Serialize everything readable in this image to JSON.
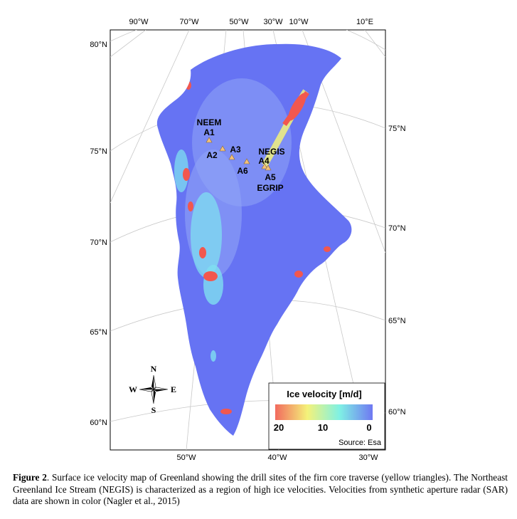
{
  "map": {
    "top_lon_ticks": [
      "90°W",
      "70°W",
      "50°W",
      "30°W",
      "10°W",
      "10°E"
    ],
    "bottom_lon_ticks": [
      "50°W",
      "40°W",
      "30°W"
    ],
    "left_lat_ticks": [
      "80°N",
      "75°N",
      "70°N",
      "65°N",
      "60°N"
    ],
    "right_lat_ticks": [
      "75°N",
      "70°N",
      "65°N",
      "60°N"
    ],
    "sites": {
      "neem": "NEEM",
      "a1": "A1",
      "a2": "A2",
      "a3": "A3",
      "a6": "A6",
      "negis": "NEGIS",
      "a4": "A4",
      "a5": "A5",
      "egrip": "EGRIP"
    },
    "compass": {
      "n": "N",
      "s": "S",
      "e": "E",
      "w": "W"
    },
    "legend": {
      "title": "Ice velocity [m/d]",
      "labels": [
        "20",
        "10",
        "0"
      ],
      "colors": [
        "#f26a5e",
        "#f4f27a",
        "#7ff1e4",
        "#6f78f2"
      ]
    },
    "source": "Source: Esa",
    "colors": {
      "ice_base": "#6673f3",
      "ice_light": "#8fa4f6",
      "ice_cyan": "#7fdff0",
      "fast_red": "#f2574e",
      "site_marker": "#f4c27a"
    }
  },
  "caption": {
    "label": "Figure 2",
    "text": ". Surface ice velocity map of Greenland showing the drill sites of the firn core traverse (yellow triangles). The Northeast Greenland Ice Stream (NEGIS) is characterized as a region of high ice velocities. Velocities from synthetic aperture radar (SAR) data are shown in color (Nagler et al., 2015)"
  }
}
